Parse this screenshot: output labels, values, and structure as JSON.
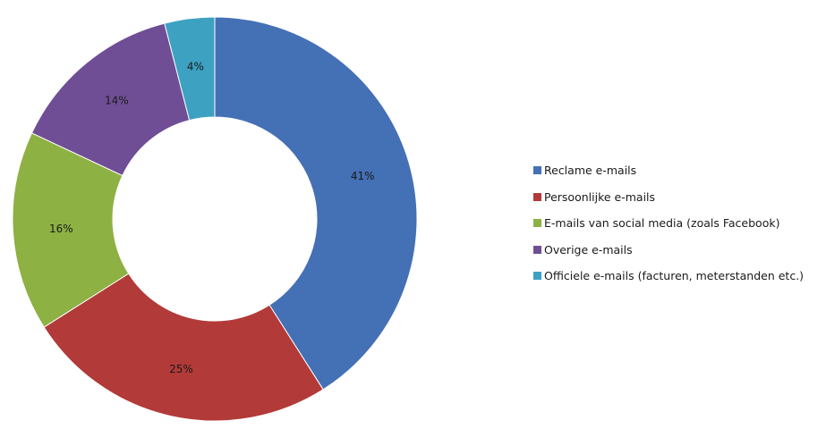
{
  "chart_data": {
    "type": "pie",
    "donut": true,
    "categories": [
      "Reclame e-mails",
      "Persoonlijke e-mails",
      "E-mails van social media (zoals Facebook)",
      "Overige e-mails",
      "Officiele e-mails (facturen, meterstanden etc.)"
    ],
    "values": [
      41,
      25,
      16,
      14,
      4
    ],
    "value_labels": [
      "41%",
      "25%",
      "16%",
      "14%",
      "4%"
    ],
    "colors": [
      "#4470B5",
      "#B23A38",
      "#8DB143",
      "#6F4E96",
      "#3DA1C1"
    ],
    "legend_position": "right",
    "title": ""
  }
}
